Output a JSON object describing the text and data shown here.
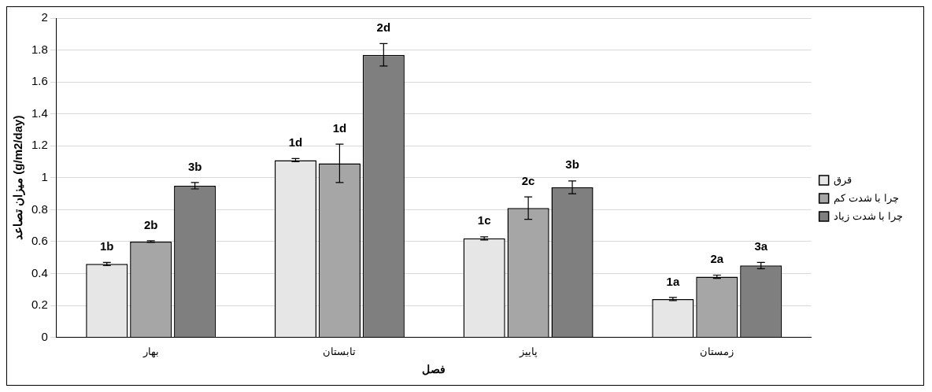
{
  "chart_data": {
    "type": "bar",
    "xlabel": "فصل",
    "ylabel": "میزان تصاعد (g/m2/day)",
    "categories": [
      "بهار",
      "تابستان",
      "پاییز",
      "زمستان"
    ],
    "series": [
      {
        "name": "قرق",
        "color": "#e6e6e6",
        "values": [
          0.46,
          1.11,
          0.62,
          0.24
        ],
        "errors": [
          0.01,
          0.01,
          0.01,
          0.01
        ]
      },
      {
        "name": "چرا با شدت کم",
        "color": "#a6a6a6",
        "values": [
          0.6,
          1.09,
          0.81,
          0.38
        ],
        "errors": [
          0.005,
          0.12,
          0.07,
          0.01
        ]
      },
      {
        "name": "چرا با شدت زیاد",
        "color": "#7f7f7f",
        "values": [
          0.95,
          1.77,
          0.94,
          0.45
        ],
        "errors": [
          0.02,
          0.07,
          0.04,
          0.02
        ]
      }
    ],
    "annotations": [
      "1b",
      "2b",
      "3b",
      "1d",
      "1d",
      "2d",
      "1c",
      "2c",
      "3b",
      "1a",
      "2a",
      "3a"
    ],
    "ylim": [
      0,
      2
    ],
    "yticks": [
      0,
      0.2,
      0.4,
      0.6,
      0.8,
      1,
      1.2,
      1.4,
      1.6,
      1.8,
      2
    ],
    "grid": "y",
    "legend": "right"
  }
}
